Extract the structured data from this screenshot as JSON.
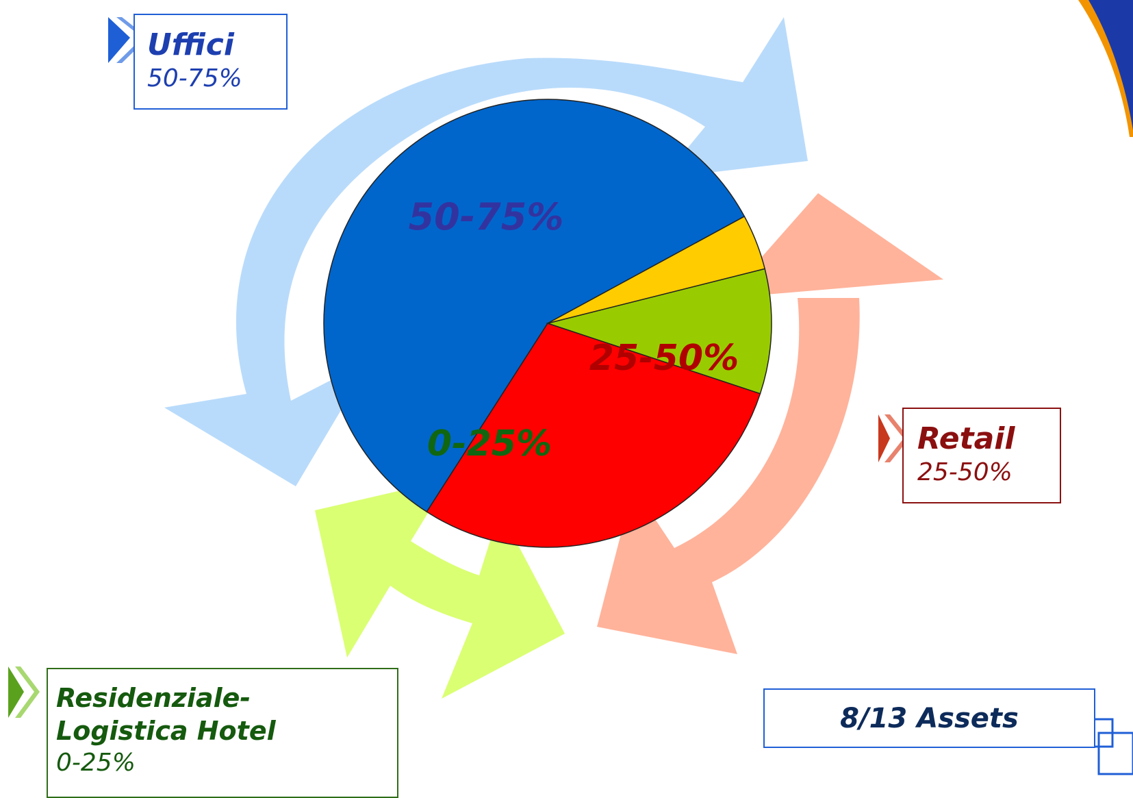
{
  "chart_data": {
    "type": "pie",
    "title": "",
    "slices": [
      {
        "label": "Uffici",
        "range": "50-75%",
        "value": 58,
        "color": "#0066cc",
        "label_color": "#3333a0"
      },
      {
        "label": "Retail",
        "range": "25-50%",
        "value": 29,
        "color": "#ff0000",
        "label_color": "#b00000"
      },
      {
        "label": "Residenziale-Logistica Hotel",
        "range": "0-25%",
        "value": 9,
        "color": "#99cc00",
        "label_color": "#116611"
      },
      {
        "label": "",
        "range": "",
        "value": 4,
        "color": "#ffcc00",
        "label_color": ""
      }
    ],
    "slice_labels": [
      "50-75%",
      "25-50%",
      "0-25%"
    ]
  },
  "callouts": {
    "uffici": {
      "title": "Uffici",
      "range": "50-75%"
    },
    "retail": {
      "title": "Retail",
      "range": "25-50%"
    },
    "residenziale": {
      "title_line1": "Residenziale-",
      "title_line2": "Logistica Hotel",
      "range": "0-25%"
    }
  },
  "assets_label": "8/13  Assets",
  "colors": {
    "arrow_blue": "#b9dbfb",
    "arrow_salmon": "#ffb39b",
    "arrow_lime": "#daff73",
    "logo_blue": "#1b3aa8",
    "logo_orange": "#f29400"
  }
}
